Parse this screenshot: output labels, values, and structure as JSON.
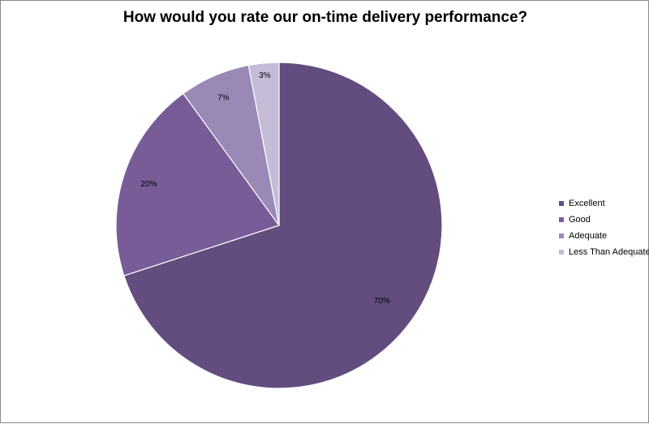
{
  "chart_data": {
    "type": "pie",
    "title": "How would you rate our on-time delivery performance?",
    "categories": [
      "Excellent",
      "Good",
      "Adequate",
      "Less Than Adequate"
    ],
    "values": [
      70,
      20,
      7,
      3
    ],
    "labels": [
      "70%",
      "20%",
      "7%",
      "3%"
    ],
    "colors": [
      "#624d7e",
      "#775c97",
      "#9a88b6",
      "#c6bcd8"
    ],
    "legend_position": "right"
  }
}
